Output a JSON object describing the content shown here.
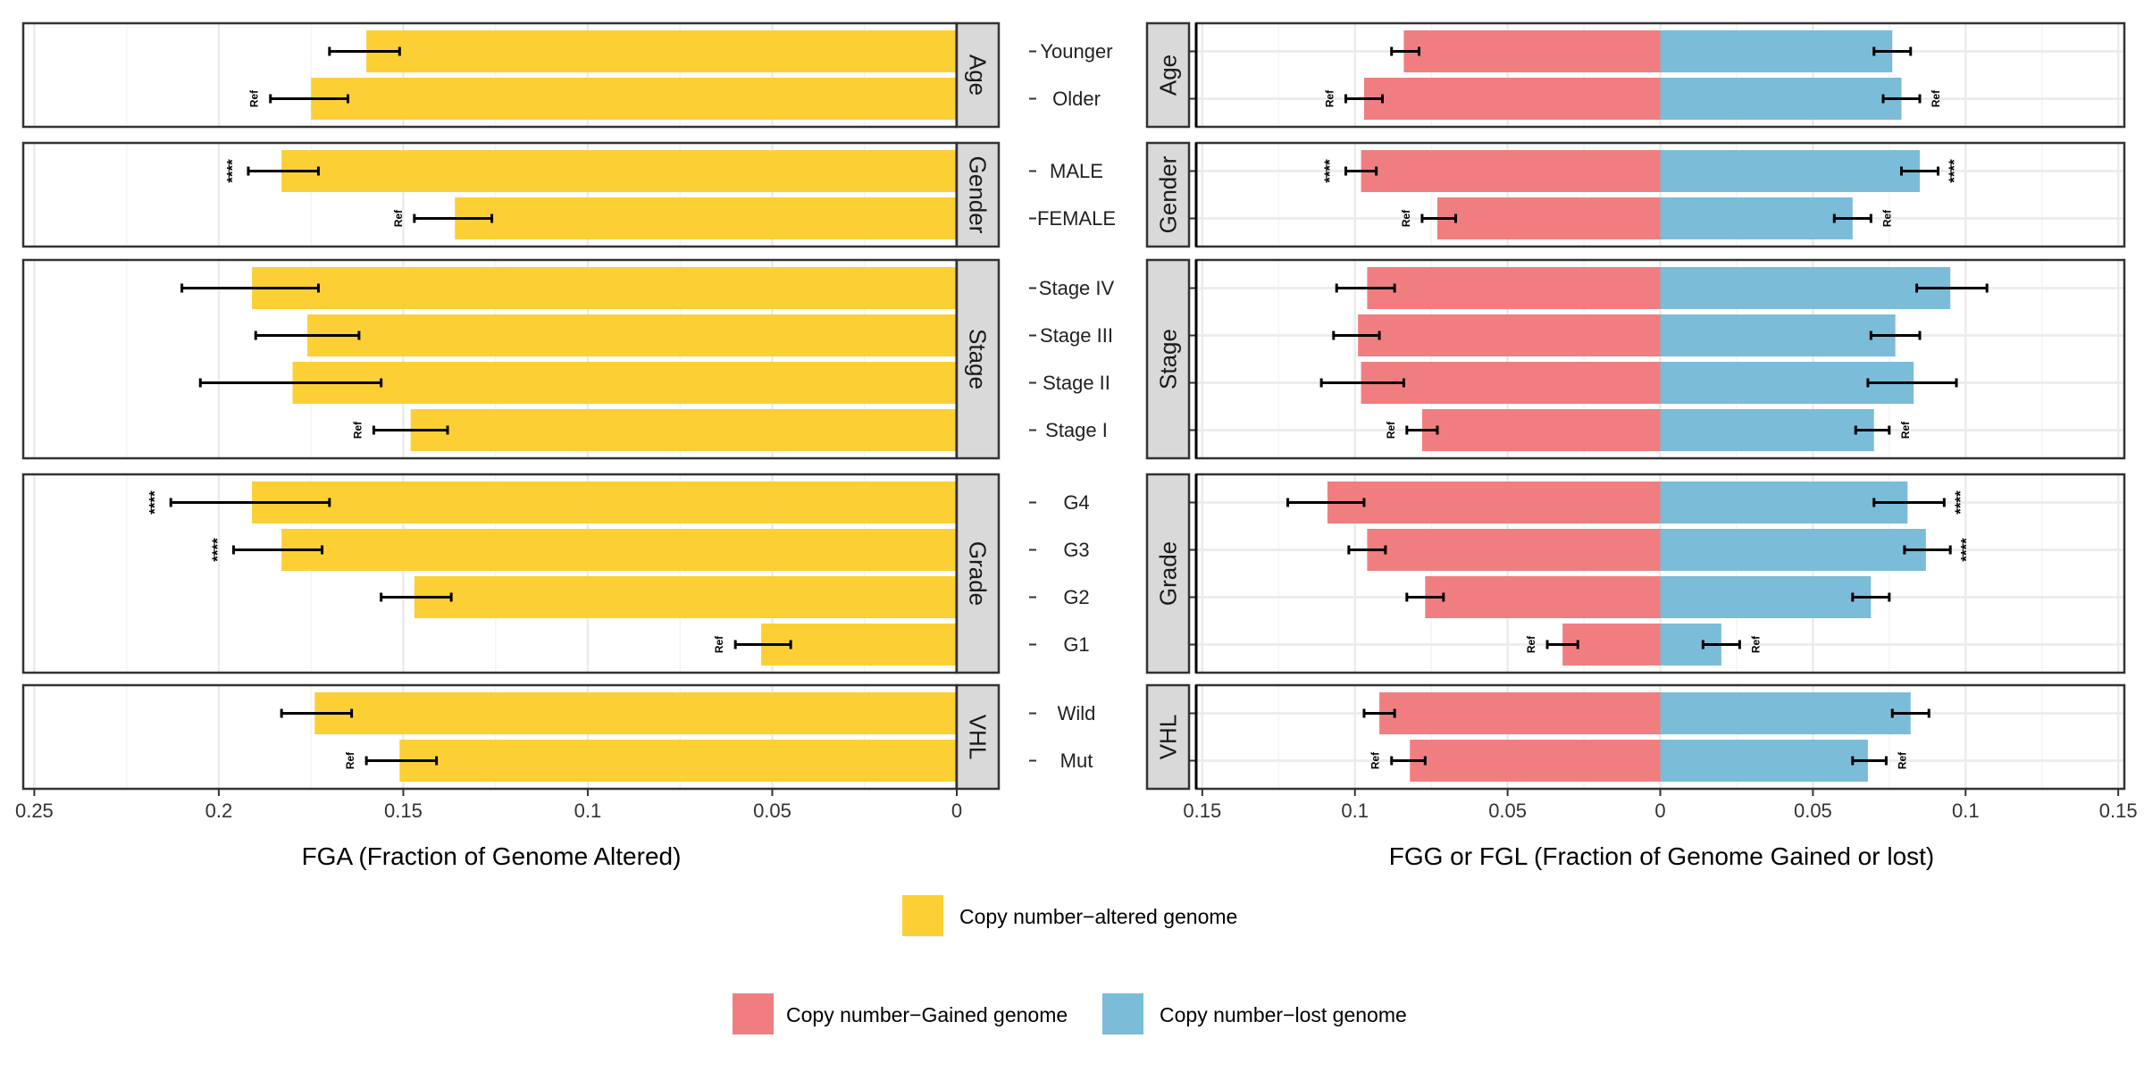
{
  "chart_data": [
    {
      "type": "bar",
      "orientation": "horizontal",
      "xaxis_reversed": true,
      "xlabel": "FGA (Fraction of Genome Altered)",
      "xlim": [
        0.253,
        0
      ],
      "xticks": [
        0.25,
        0.2,
        0.15,
        0.1,
        0.05,
        0
      ],
      "xtick_labels": [
        "0.25",
        "0.2",
        "0.15",
        "0.1",
        "0.05",
        "0"
      ],
      "series": [
        {
          "name": "Copy number−altered genome",
          "color": "#fcd034"
        }
      ],
      "facets": [
        {
          "label": "Age",
          "rows": [
            {
              "category": "Younger",
              "value": 0.16,
              "err_lo": 0.151,
              "err_hi": 0.17,
              "annot": ""
            },
            {
              "category": "Older",
              "value": 0.175,
              "err_lo": 0.165,
              "err_hi": 0.186,
              "annot": "Ref"
            }
          ]
        },
        {
          "label": "Gender",
          "rows": [
            {
              "category": "MALE",
              "value": 0.183,
              "err_lo": 0.173,
              "err_hi": 0.192,
              "annot": "****"
            },
            {
              "category": "FEMALE",
              "value": 0.136,
              "err_lo": 0.126,
              "err_hi": 0.147,
              "annot": "Ref"
            }
          ]
        },
        {
          "label": "Stage",
          "rows": [
            {
              "category": "Stage IV",
              "value": 0.191,
              "err_lo": 0.173,
              "err_hi": 0.21,
              "annot": ""
            },
            {
              "category": "Stage III",
              "value": 0.176,
              "err_lo": 0.162,
              "err_hi": 0.19,
              "annot": ""
            },
            {
              "category": "Stage II",
              "value": 0.18,
              "err_lo": 0.156,
              "err_hi": 0.205,
              "annot": ""
            },
            {
              "category": "Stage I",
              "value": 0.148,
              "err_lo": 0.138,
              "err_hi": 0.158,
              "annot": "Ref"
            }
          ]
        },
        {
          "label": "Grade",
          "rows": [
            {
              "category": "G4",
              "value": 0.191,
              "err_lo": 0.17,
              "err_hi": 0.213,
              "annot": "****"
            },
            {
              "category": "G3",
              "value": 0.183,
              "err_lo": 0.172,
              "err_hi": 0.196,
              "annot": "****"
            },
            {
              "category": "G2",
              "value": 0.147,
              "err_lo": 0.137,
              "err_hi": 0.156,
              "annot": ""
            },
            {
              "category": "G1",
              "value": 0.053,
              "err_lo": 0.045,
              "err_hi": 0.06,
              "annot": "Ref"
            }
          ]
        },
        {
          "label": "VHL",
          "rows": [
            {
              "category": "Wild",
              "value": 0.174,
              "err_lo": 0.164,
              "err_hi": 0.183,
              "annot": ""
            },
            {
              "category": "Mut",
              "value": 0.151,
              "err_lo": 0.141,
              "err_hi": 0.16,
              "annot": "Ref"
            }
          ]
        }
      ]
    },
    {
      "type": "bar",
      "orientation": "horizontal",
      "diverging": true,
      "xlabel": "FGG or FGL (Fraction of Genome Gained or lost)",
      "xlim": [
        -0.152,
        0.152
      ],
      "xticks": [
        -0.15,
        -0.1,
        -0.05,
        0,
        0.05,
        0.1,
        0.15
      ],
      "xtick_labels": [
        "0.15",
        "0.1",
        "0.05",
        "0",
        "0.05",
        "0.1",
        "0.15"
      ],
      "series": [
        {
          "name": "Copy number−Gained genome",
          "color": "#f07e80",
          "side": "left"
        },
        {
          "name": "Copy number−lost genome",
          "color": "#7bbcd9",
          "side": "right"
        }
      ],
      "facets": [
        {
          "label": "Age",
          "rows": [
            {
              "category": "Younger",
              "gained": {
                "value": 0.084,
                "err_lo": 0.079,
                "err_hi": 0.088,
                "annot": ""
              },
              "lost": {
                "value": 0.076,
                "err_lo": 0.07,
                "err_hi": 0.082,
                "annot": ""
              }
            },
            {
              "category": "Older",
              "gained": {
                "value": 0.097,
                "err_lo": 0.091,
                "err_hi": 0.103,
                "annot": "Ref"
              },
              "lost": {
                "value": 0.079,
                "err_lo": 0.073,
                "err_hi": 0.085,
                "annot": "Ref"
              }
            }
          ]
        },
        {
          "label": "Gender",
          "rows": [
            {
              "category": "MALE",
              "gained": {
                "value": 0.098,
                "err_lo": 0.093,
                "err_hi": 0.103,
                "annot": "****"
              },
              "lost": {
                "value": 0.085,
                "err_lo": 0.079,
                "err_hi": 0.091,
                "annot": "****"
              }
            },
            {
              "category": "FEMALE",
              "gained": {
                "value": 0.073,
                "err_lo": 0.067,
                "err_hi": 0.078,
                "annot": "Ref"
              },
              "lost": {
                "value": 0.063,
                "err_lo": 0.057,
                "err_hi": 0.069,
                "annot": "Ref"
              }
            }
          ]
        },
        {
          "label": "Stage",
          "rows": [
            {
              "category": "Stage IV",
              "gained": {
                "value": 0.096,
                "err_lo": 0.087,
                "err_hi": 0.106,
                "annot": ""
              },
              "lost": {
                "value": 0.095,
                "err_lo": 0.084,
                "err_hi": 0.107,
                "annot": ""
              }
            },
            {
              "category": "Stage III",
              "gained": {
                "value": 0.099,
                "err_lo": 0.092,
                "err_hi": 0.107,
                "annot": ""
              },
              "lost": {
                "value": 0.077,
                "err_lo": 0.069,
                "err_hi": 0.085,
                "annot": ""
              }
            },
            {
              "category": "Stage II",
              "gained": {
                "value": 0.098,
                "err_lo": 0.084,
                "err_hi": 0.111,
                "annot": ""
              },
              "lost": {
                "value": 0.083,
                "err_lo": 0.068,
                "err_hi": 0.097,
                "annot": ""
              }
            },
            {
              "category": "Stage I",
              "gained": {
                "value": 0.078,
                "err_lo": 0.073,
                "err_hi": 0.083,
                "annot": "Ref"
              },
              "lost": {
                "value": 0.07,
                "err_lo": 0.064,
                "err_hi": 0.075,
                "annot": "Ref"
              }
            }
          ]
        },
        {
          "label": "Grade",
          "rows": [
            {
              "category": "G4",
              "gained": {
                "value": 0.109,
                "err_lo": 0.097,
                "err_hi": 0.122,
                "annot": ""
              },
              "lost": {
                "value": 0.081,
                "err_lo": 0.07,
                "err_hi": 0.093,
                "annot": "****"
              }
            },
            {
              "category": "G3",
              "gained": {
                "value": 0.096,
                "err_lo": 0.09,
                "err_hi": 0.102,
                "annot": ""
              },
              "lost": {
                "value": 0.087,
                "err_lo": 0.08,
                "err_hi": 0.095,
                "annot": "****"
              }
            },
            {
              "category": "G2",
              "gained": {
                "value": 0.077,
                "err_lo": 0.071,
                "err_hi": 0.083,
                "annot": ""
              },
              "lost": {
                "value": 0.069,
                "err_lo": 0.063,
                "err_hi": 0.075,
                "annot": ""
              }
            },
            {
              "category": "G1",
              "gained": {
                "value": 0.032,
                "err_lo": 0.027,
                "err_hi": 0.037,
                "annot": "Ref"
              },
              "lost": {
                "value": 0.02,
                "err_lo": 0.014,
                "err_hi": 0.026,
                "annot": "Ref"
              }
            }
          ]
        },
        {
          "label": "VHL",
          "rows": [
            {
              "category": "Wild",
              "gained": {
                "value": 0.092,
                "err_lo": 0.087,
                "err_hi": 0.097,
                "annot": ""
              },
              "lost": {
                "value": 0.082,
                "err_lo": 0.076,
                "err_hi": 0.088,
                "annot": ""
              }
            },
            {
              "category": "Mut",
              "gained": {
                "value": 0.082,
                "err_lo": 0.077,
                "err_hi": 0.088,
                "annot": "Ref"
              },
              "lost": {
                "value": 0.068,
                "err_lo": 0.063,
                "err_hi": 0.074,
                "annot": "Ref"
              }
            }
          ]
        }
      ]
    }
  ],
  "legends": [
    {
      "items": [
        {
          "label": "Copy number−altered genome",
          "color": "#fcd034"
        }
      ]
    },
    {
      "items": [
        {
          "label": "Copy number−Gained genome",
          "color": "#f07e80"
        },
        {
          "label": "Copy number−lost genome",
          "color": "#7bbcd9"
        }
      ]
    }
  ],
  "colors": {
    "strip_bg": "#d9d9d9",
    "grid_major": "#ebebeb",
    "grid_minor": "#f4f4f4",
    "error_bar": "#000000"
  }
}
